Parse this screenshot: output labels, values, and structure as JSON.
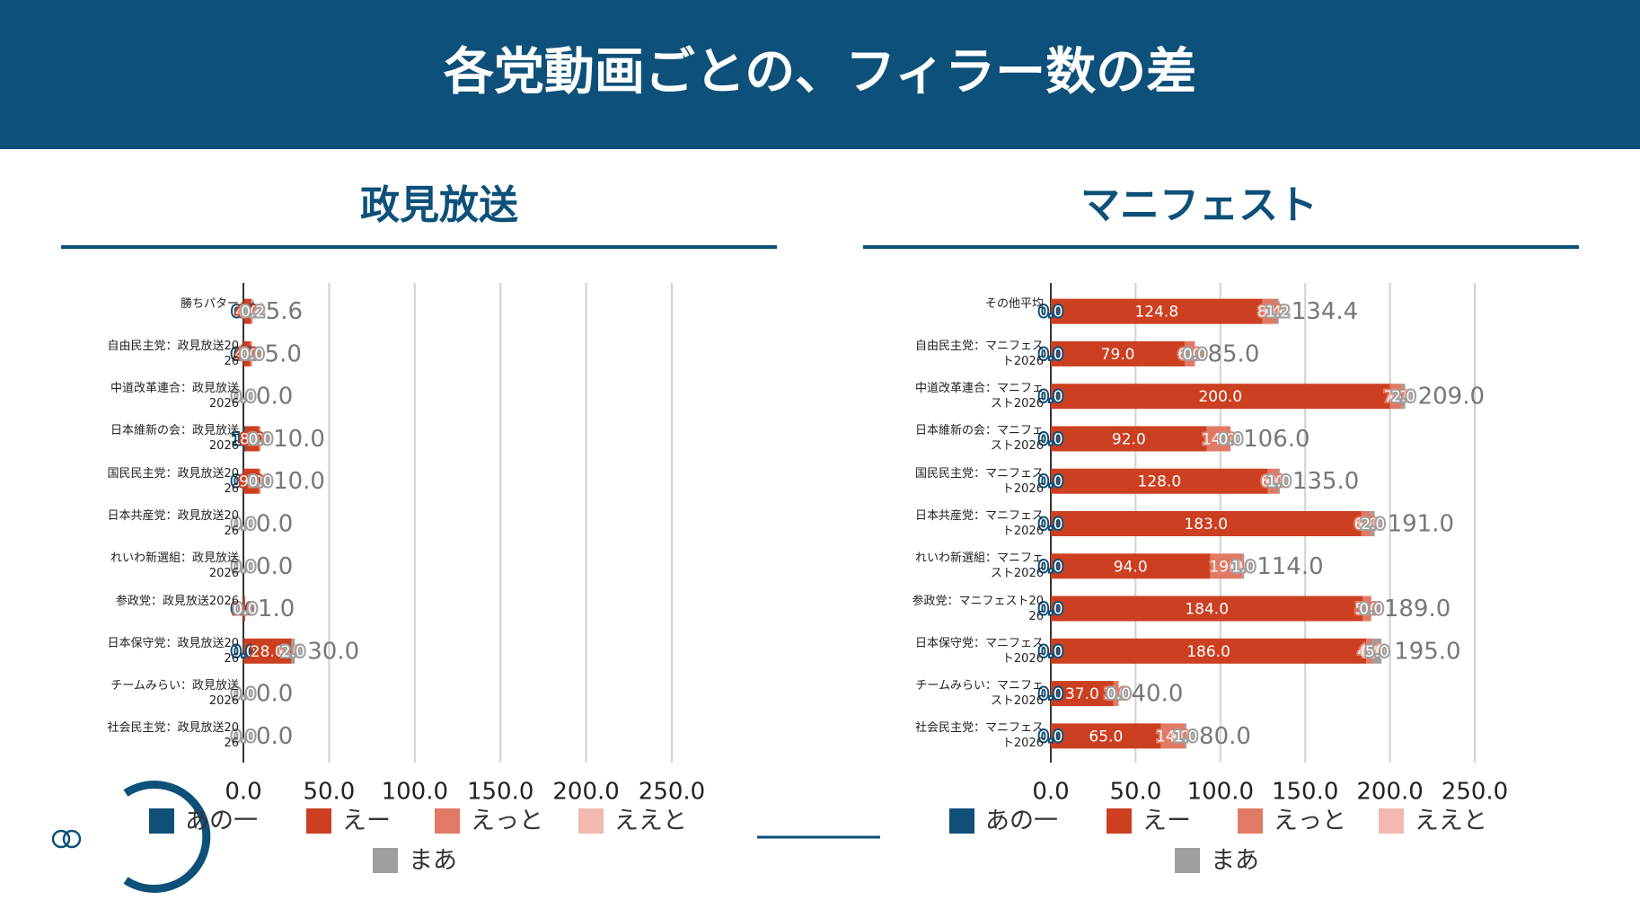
{
  "header": {
    "title": "各党動画ごとの、フィラー数の差"
  },
  "chart_data": [
    {
      "type": "bar",
      "orientation": "horizontal",
      "stacked": true,
      "title": "政見放送",
      "categories": [
        "勝ちパター",
        "自由民主党：政見放送2026",
        "中道改革連合：政見放送2026",
        "日本維新の会：政見放送2026",
        "国民民主党：政見放送2026",
        "日本共産党：政見放送2026",
        "れいわ新選組：政見放送2026",
        "参政党：政見放送2026",
        "日本保守党：政見放送2026",
        "チームみらい：政見放送2026",
        "社会民主党：政見放送2026"
      ],
      "series": [
        {
          "name": "あの一",
          "color": "#0f4f78",
          "values": [
            0.4,
            0,
            0,
            1,
            0,
            0,
            0,
            0,
            0,
            0,
            0
          ],
          "value_labels": [
            "0.4",
            "0.0",
            "0.0",
            "1.0",
            "0.0",
            "0.0",
            "0.0",
            "0.0",
            "0.0",
            "0.0",
            "0.0"
          ]
        },
        {
          "name": "えー",
          "color": "#cc3f21",
          "values": [
            4.0,
            4.0,
            0,
            8,
            9,
            0,
            0,
            1,
            28.0,
            0,
            0
          ],
          "value_labels": [
            "4.0",
            "4.0",
            "0.0",
            "8.0",
            "9.0",
            "0.0",
            "0.0",
            "1.0",
            "28.0",
            "0.0",
            "0.0"
          ]
        },
        {
          "name": "えっと",
          "color": "#e07a64",
          "values": [
            0.6,
            1.0,
            0,
            1,
            1,
            0,
            0,
            0,
            0,
            0,
            0
          ],
          "value_labels": [
            "0.6",
            "1.0",
            "0.0",
            "1.0",
            "1.0",
            "0.0",
            "0.0",
            "0.0",
            "0.0",
            "0.0",
            "0.0"
          ]
        },
        {
          "name": "ええと",
          "color": "#f0b8ae",
          "values": [
            0.4,
            0,
            0,
            0,
            0,
            0,
            0,
            0,
            0,
            0,
            0
          ],
          "value_labels": [
            "0.4",
            "0.0",
            "0.0",
            "0.0",
            "0.0",
            "0.0",
            "0.0",
            "0.0",
            "0.0",
            "0.0",
            "0.0"
          ]
        },
        {
          "name": "まあ",
          "color": "#9e9e9e",
          "values": [
            0.2,
            0,
            0,
            0,
            0,
            0,
            0,
            0,
            2.0,
            0,
            0
          ],
          "value_labels": [
            "0.2",
            "0.0",
            "0.0",
            "0.0",
            "0.0",
            "0.0",
            "0.0",
            "0.0",
            "2.0",
            "0.0",
            "0.0"
          ]
        }
      ],
      "totals": {
        "values": [
          5.6,
          5,
          0,
          10,
          10,
          0,
          0,
          1,
          30,
          0,
          0
        ],
        "value_labels": [
          "5.6",
          "5.0",
          "0.0",
          "10.0",
          "10.0",
          "0.0",
          "0.0",
          "1.0",
          "30.0",
          "0.0",
          "0.0"
        ]
      },
      "xlim": [
        0,
        250
      ],
      "xticks": [
        {
          "value": 0,
          "label": "0.0"
        },
        {
          "value": 50,
          "label": "50.0"
        },
        {
          "value": 100,
          "label": "100.0"
        },
        {
          "value": 150,
          "label": "150.0"
        },
        {
          "value": 200,
          "label": "200.0"
        },
        {
          "value": 250,
          "label": "250.0"
        }
      ],
      "grid": true
    },
    {
      "type": "bar",
      "orientation": "horizontal",
      "stacked": true,
      "title": "マニフェスト",
      "categories": [
        "その他平均",
        "自由民主党：マニフェスト2026",
        "中道改革連合：マニフェスト2026",
        "日本維新の会：マニフェスト2026",
        "国民民主党：マニフェスト2026",
        "日本共産党：マニフェスト2026",
        "れいわ新選組：マニフェスト2026",
        "参政党：マニフェスト2026",
        "日本保守党：マニフェスト2026",
        "チームみらい：マニフェスト2026",
        "社会民主党：マニフェスト2026"
      ],
      "series": [
        {
          "name": "あの一",
          "color": "#0f4f78",
          "values": [
            0,
            0,
            0,
            0,
            0,
            0,
            0,
            0,
            0,
            0,
            0
          ],
          "value_labels": [
            "0.0",
            "0.0",
            "0.0",
            "0.0",
            "0.0",
            "0.0",
            "0.0",
            "0.0",
            "0.0",
            "0.0",
            "0.0"
          ]
        },
        {
          "name": "えー",
          "color": "#cc3f21",
          "values": [
            124.8,
            79,
            200,
            92,
            128,
            183,
            94,
            184,
            186,
            37,
            65
          ],
          "value_labels": [
            "124.8",
            "79.0",
            "200.0",
            "92.0",
            "128.0",
            "183.0",
            "94.0",
            "184.0",
            "186.0",
            "37.0",
            "65.0"
          ]
        },
        {
          "name": "えっと",
          "color": "#e07a64",
          "values": [
            8.4,
            6,
            7,
            14,
            6,
            6,
            19,
            5,
            4,
            3,
            14
          ],
          "value_labels": [
            "8.4",
            "6.0",
            "7.0",
            "14.0",
            "6.0",
            "6.0",
            "19.0",
            "5.0",
            "4.0",
            "3.0",
            "14.0"
          ]
        },
        {
          "name": "ええと",
          "color": "#f0b8ae",
          "values": [
            0,
            0,
            0,
            0,
            0,
            0,
            0,
            0,
            0,
            0,
            0
          ],
          "value_labels": [
            "0.0",
            "0.0",
            "0.0",
            "0.0",
            "0.0",
            "0.0",
            "0.0",
            "0.0",
            "0.0",
            "0.0",
            "0.0"
          ]
        },
        {
          "name": "まあ",
          "color": "#9e9e9e",
          "values": [
            1.2,
            0,
            2,
            0,
            1,
            2,
            1,
            0,
            5,
            0,
            1
          ],
          "value_labels": [
            "1.2",
            "0.0",
            "2.0",
            "0.0",
            "1.0",
            "2.0",
            "1.0",
            "0.0",
            "5.0",
            "0.0",
            "1.0"
          ]
        }
      ],
      "totals": {
        "values": [
          134.4,
          85,
          209,
          106,
          135,
          191,
          114,
          189,
          195,
          40,
          80
        ],
        "value_labels": [
          "134.4",
          "85.0",
          "209.0",
          "106.0",
          "135.0",
          "191.0",
          "114.0",
          "189.0",
          "195.0",
          "40.0",
          "80.0"
        ]
      },
      "xlim": [
        0,
        250
      ],
      "xticks": [
        {
          "value": 0,
          "label": "0.0"
        },
        {
          "value": 50,
          "label": "50.0"
        },
        {
          "value": 100,
          "label": "100.0"
        },
        {
          "value": 150,
          "label": "150.0"
        },
        {
          "value": 200,
          "label": "200.0"
        },
        {
          "value": 250,
          "label": "250.0"
        }
      ],
      "grid": true
    }
  ]
}
